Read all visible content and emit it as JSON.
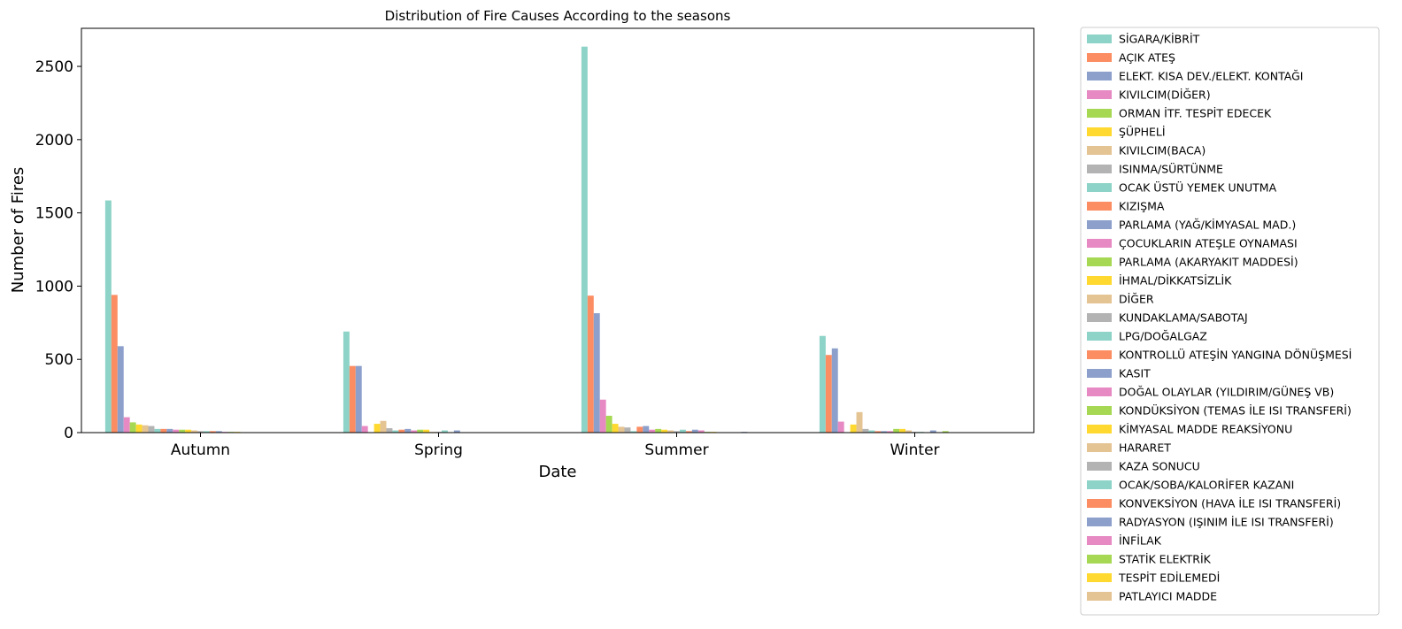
{
  "chart_data": {
    "type": "bar",
    "title": "Distribution of Fire Causes According to the seasons",
    "xlabel": "Date",
    "ylabel": "Number of Fires",
    "categories": [
      "Autumn",
      "Spring",
      "Summer",
      "Winter"
    ],
    "ylim": [
      0,
      2760
    ],
    "yticks": [
      0,
      500,
      1000,
      1500,
      2000,
      2500
    ],
    "grid": false,
    "legend_position": "outside-right",
    "palette": [
      "#8dd3c7",
      "#fc8d62",
      "#8da0cb",
      "#e78ac3",
      "#a6d854",
      "#ffd92f",
      "#e5c494",
      "#b3b3b3"
    ],
    "series": [
      {
        "name": "SİGARA/KİBRİT",
        "values": [
          1585,
          690,
          2635,
          660
        ]
      },
      {
        "name": "AÇIK ATEŞ",
        "values": [
          940,
          455,
          935,
          530
        ]
      },
      {
        "name": "ELEKT. KISA DEV./ELEKT. KONTAĞI",
        "values": [
          590,
          455,
          815,
          575
        ]
      },
      {
        "name": "KIVILCIM(DİĞER)",
        "values": [
          105,
          45,
          225,
          75
        ]
      },
      {
        "name": "ORMAN İTF. TESPİT EDECEK",
        "values": [
          70,
          3,
          115,
          3
        ]
      },
      {
        "name": "ŞÜPHELİ",
        "values": [
          55,
          60,
          60,
          55
        ]
      },
      {
        "name": "KIVILCIM(BACA)",
        "values": [
          50,
          80,
          40,
          140
        ]
      },
      {
        "name": "ISINMA/SÜRTÜNME",
        "values": [
          45,
          30,
          35,
          25
        ]
      },
      {
        "name": "OCAK ÜSTÜ YEMEK UNUTMA",
        "values": [
          25,
          15,
          10,
          15
        ]
      },
      {
        "name": "KIZIŞMA",
        "values": [
          25,
          20,
          40,
          10
        ]
      },
      {
        "name": "PARLAMA (YAĞ/KİMYASAL MAD.)",
        "values": [
          25,
          25,
          45,
          10
        ]
      },
      {
        "name": "ÇOCUKLARIN ATEŞLE OYNAMASI",
        "values": [
          20,
          15,
          20,
          10
        ]
      },
      {
        "name": "PARLAMA (AKARYAKIT MADDESİ)",
        "values": [
          20,
          20,
          25,
          25
        ]
      },
      {
        "name": "İHMAL/DİKKATSİZLİK",
        "values": [
          20,
          20,
          20,
          25
        ]
      },
      {
        "name": "DİĞER",
        "values": [
          15,
          5,
          15,
          15
        ]
      },
      {
        "name": "KUNDAKLAMA/SABOTAJ",
        "values": [
          10,
          5,
          10,
          5
        ]
      },
      {
        "name": "LPG/DOĞALGAZ",
        "values": [
          10,
          15,
          20,
          5
        ]
      },
      {
        "name": "KONTROLLÜ ATEŞİN YANGINA DÖNÜŞMESİ",
        "values": [
          10,
          3,
          10,
          3
        ]
      },
      {
        "name": "KASIT",
        "values": [
          10,
          15,
          20,
          15
        ]
      },
      {
        "name": "DOĞAL OLAYLAR (YILDIRIM/GÜNEŞ VB)",
        "values": [
          5,
          3,
          15,
          3
        ]
      },
      {
        "name": "KONDÜKSİYON (TEMAS İLE ISI TRANSFERİ)",
        "values": [
          5,
          3,
          5,
          10
        ]
      },
      {
        "name": "KİMYASAL MADDE REAKSİYONU",
        "values": [
          5,
          3,
          5,
          3
        ]
      },
      {
        "name": "HARARET",
        "values": [
          3,
          3,
          3,
          3
        ]
      },
      {
        "name": "KAZA SONUCU",
        "values": [
          3,
          3,
          3,
          3
        ]
      },
      {
        "name": "OCAK/SOBA/KALORİFER KAZANI",
        "values": [
          3,
          3,
          3,
          3
        ]
      },
      {
        "name": "KONVEKSİYON (HAVA İLE ISI TRANSFERİ)",
        "values": [
          3,
          3,
          3,
          3
        ]
      },
      {
        "name": "RADYASYON (IŞINIM İLE ISI TRANSFERİ)",
        "values": [
          3,
          3,
          5,
          3
        ]
      },
      {
        "name": "İNFİLAK",
        "values": [
          3,
          3,
          3,
          3
        ]
      },
      {
        "name": "STATİK ELEKTRİK",
        "values": [
          3,
          3,
          3,
          3
        ]
      },
      {
        "name": "TESPİT EDİLEMEDİ",
        "values": [
          3,
          3,
          3,
          3
        ]
      },
      {
        "name": "PATLAYICI MADDE",
        "values": [
          3,
          3,
          3,
          3
        ]
      }
    ]
  }
}
